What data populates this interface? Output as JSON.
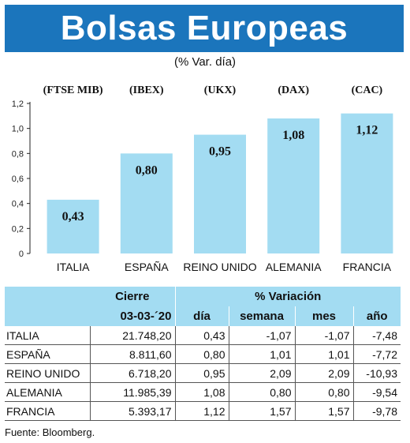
{
  "header": {
    "title": "Bolsas Europeas",
    "subtitle": "(% Var. día)"
  },
  "colors": {
    "banner": "#1b75bc",
    "bar": "#a3dcf2",
    "table_header": "#a3dcf2"
  },
  "chart_data": {
    "type": "bar",
    "categories": [
      "ITALIA",
      "ESPAÑA",
      "REINO UNIDO",
      "ALEMANIA",
      "FRANCIA"
    ],
    "index_labels": [
      "(FTSE MIB)",
      "(IBEX)",
      "(UKX)",
      "(DAX)",
      "(CAC)"
    ],
    "values": [
      0.43,
      0.8,
      0.95,
      1.08,
      1.12
    ],
    "value_labels": [
      "0,43",
      "0,80",
      "0,95",
      "1,08",
      "1,12"
    ],
    "ylim": [
      0,
      1.2
    ],
    "yticks": [
      0,
      0.2,
      0.4,
      0.6,
      0.8,
      1.0,
      1.2
    ],
    "ytick_labels": [
      "0",
      "0,2",
      "0,4",
      "0,6",
      "0,8",
      "1,0",
      "1,2"
    ],
    "grid": false,
    "legend": "none"
  },
  "table": {
    "group_headers": [
      "Cierre",
      "% Variación"
    ],
    "columns": [
      "03-03-´20",
      "día",
      "semana",
      "mes",
      "año"
    ],
    "rows": [
      {
        "country": "ITALIA",
        "cierre": "21.748,20",
        "dia": "0,43",
        "semana": "-1,07",
        "mes": "-1,07",
        "anio": "-7,48"
      },
      {
        "country": "ESPAÑA",
        "cierre": "8.811,60",
        "dia": "0,80",
        "semana": "1,01",
        "mes": "1,01",
        "anio": "-7,72"
      },
      {
        "country": "REINO UNIDO",
        "cierre": "6.718,20",
        "dia": "0,95",
        "semana": "2,09",
        "mes": "2,09",
        "anio": "-10,93"
      },
      {
        "country": "ALEMANIA",
        "cierre": "11.985,39",
        "dia": "1,08",
        "semana": "0,80",
        "mes": "0,80",
        "anio": "-9,54"
      },
      {
        "country": "FRANCIA",
        "cierre": "5.393,17",
        "dia": "1,12",
        "semana": "1,57",
        "mes": "1,57",
        "anio": "-9,78"
      }
    ]
  },
  "footer": {
    "source": "Fuente: Bloomberg."
  }
}
